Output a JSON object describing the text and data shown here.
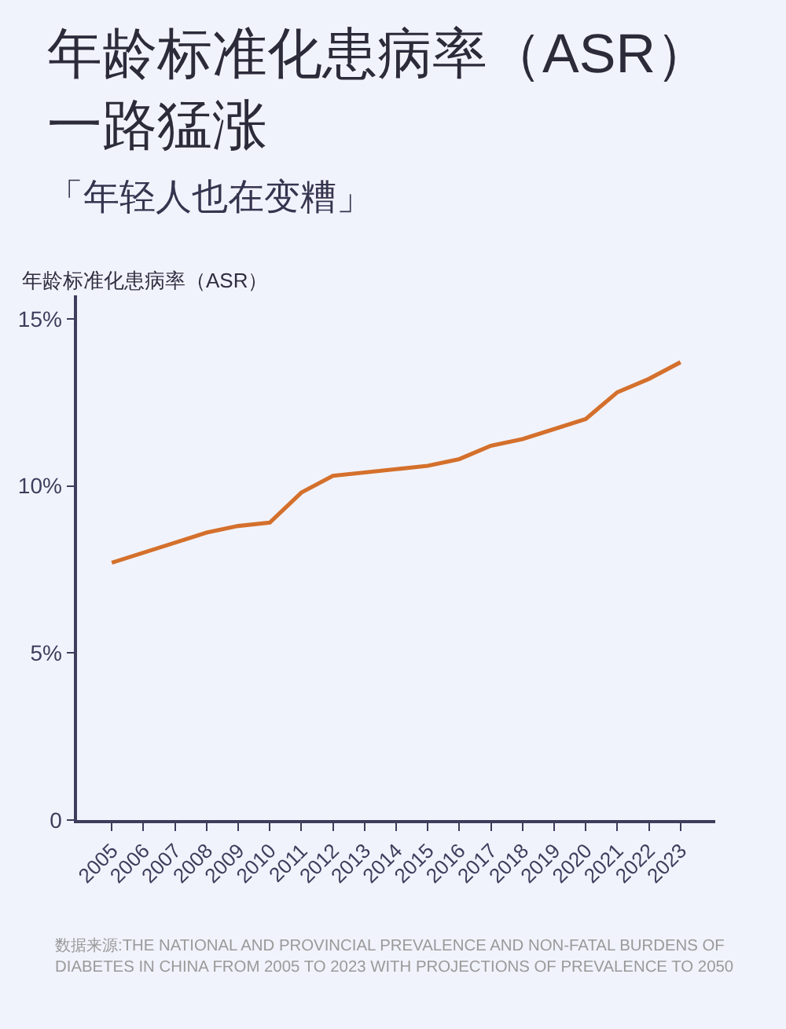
{
  "chart_data": {
    "type": "line",
    "title": "年龄标准化患病率（ASR）一路猛涨",
    "subtitle": "「年轻人也在变糟」",
    "ylabel": "年龄标准化患病率（ASR）",
    "annotations": [
      "数据来源:THE NATIONAL AND PROVINCIAL PREVALENCE AND NON-FATAL BURDENS OF\nDIABETES IN CHINA FROM 2005 TO 2023 WITH PROJECTIONS OF PREVALENCE TO 2050"
    ],
    "categories": [
      "2005",
      "2006",
      "2007",
      "2008",
      "2009",
      "2010",
      "2011",
      "2012",
      "2013",
      "2014",
      "2015",
      "2016",
      "2017",
      "2018",
      "2019",
      "2020",
      "2021",
      "2022",
      "2023"
    ],
    "series": [
      {
        "color": "#d4702c",
        "values": [
          7.7,
          8.0,
          8.3,
          8.6,
          8.8,
          8.9,
          9.8,
          10.3,
          10.4,
          10.5,
          10.6,
          10.8,
          11.2,
          11.4,
          11.7,
          12.0,
          12.8,
          13.2,
          13.7
        ]
      }
    ],
    "ylim": [
      0,
      15.7
    ],
    "yticks": [
      0,
      {
        "value": 5,
        "label": "5%"
      },
      {
        "value": 10,
        "label": "10%"
      },
      {
        "value": 15,
        "label": "15%"
      }
    ]
  }
}
